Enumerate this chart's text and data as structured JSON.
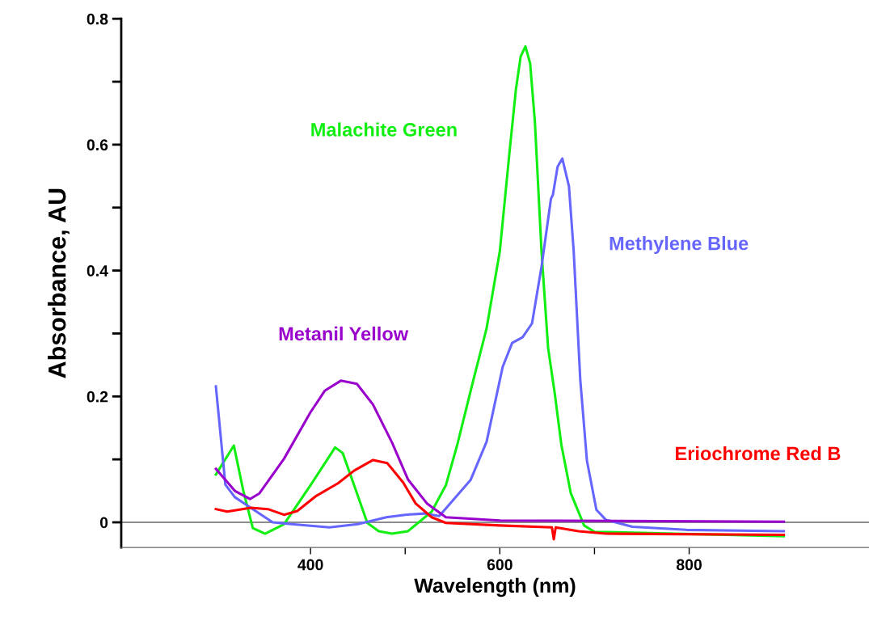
{
  "chart_data": {
    "type": "line",
    "xlabel": "Wavelength (nm)",
    "ylabel": "Absorbance, AU",
    "xlim": [
      200,
      990
    ],
    "ylim": [
      -0.04,
      0.8
    ],
    "xticks": [
      400,
      {
        "value": 500,
        "label": null
      },
      600,
      {
        "value": 700,
        "label": null
      },
      800
    ],
    "yticks": [
      0,
      {
        "value": 0.1,
        "label": null
      },
      0.2,
      {
        "value": 0.3,
        "label": null
      },
      0.4,
      {
        "value": 0.5,
        "label": null
      },
      0.6,
      {
        "value": 0.7,
        "label": null
      },
      0.8
    ],
    "ref_lines": [
      {
        "axis": "y",
        "value": 0,
        "color": "#666666"
      }
    ],
    "grid": false,
    "legend": false,
    "marker": "none",
    "line_style": "solid",
    "series": [
      {
        "name": "Malachite Green",
        "color": "#11ee11",
        "x": [
          300,
          319,
          329,
          339,
          352,
          372,
          400,
          426,
          434,
          446,
          460,
          472,
          486,
          503,
          528,
          543,
          555,
          572,
          586,
          600,
          610,
          617,
          622,
          627,
          632,
          637,
          644,
          651,
          658,
          665,
          675,
          689,
          700,
          900
        ],
        "values": [
          0.076,
          0.122,
          0.05,
          -0.009,
          -0.018,
          -0.003,
          0.059,
          0.119,
          0.11,
          0.059,
          -0.001,
          -0.014,
          -0.018,
          -0.014,
          0.017,
          0.059,
          0.123,
          0.226,
          0.308,
          0.431,
          0.585,
          0.688,
          0.74,
          0.756,
          0.729,
          0.637,
          0.431,
          0.277,
          0.205,
          0.123,
          0.046,
          -0.005,
          -0.015,
          -0.022
        ]
      },
      {
        "name": "Methylene Blue",
        "color": "#6666ff",
        "x": [
          300,
          310,
          320,
          340,
          360,
          380,
          420,
          450,
          480,
          500,
          520,
          536,
          569,
          586,
          603,
          613,
          624,
          634,
          644,
          654,
          656,
          661,
          666,
          673,
          678,
          685,
          692,
          702,
          712,
          740,
          797,
          900
        ],
        "values": [
          0.216,
          0.06,
          0.04,
          0.02,
          0.0,
          -0.003,
          -0.008,
          -0.003,
          0.008,
          0.012,
          0.014,
          0.01,
          0.067,
          0.128,
          0.247,
          0.285,
          0.294,
          0.316,
          0.406,
          0.514,
          0.52,
          0.565,
          0.578,
          0.534,
          0.431,
          0.226,
          0.098,
          0.02,
          0.004,
          -0.007,
          -0.012,
          -0.014
        ]
      },
      {
        "name": "Metanil Yellow",
        "color": "#9900cc",
        "x": [
          300,
          320,
          336,
          346,
          372,
          400,
          415,
          432,
          449,
          466,
          486,
          503,
          523,
          543,
          600,
          900
        ],
        "values": [
          0.085,
          0.05,
          0.037,
          0.046,
          0.101,
          0.175,
          0.209,
          0.225,
          0.22,
          0.187,
          0.127,
          0.068,
          0.03,
          0.008,
          0.003,
          0.001
        ]
      },
      {
        "name": "Eriochrome Red B",
        "color": "#ff0000",
        "x": [
          300,
          312,
          337,
          355,
          372,
          386,
          406,
          429,
          446,
          466,
          481,
          486,
          498,
          511,
          528,
          543,
          600,
          655,
          657,
          659,
          683,
          712,
          900
        ],
        "values": [
          0.021,
          0.017,
          0.023,
          0.021,
          0.012,
          0.018,
          0.042,
          0.062,
          0.082,
          0.099,
          0.094,
          0.085,
          0.063,
          0.03,
          0.008,
          -0.001,
          -0.005,
          -0.008,
          -0.027,
          -0.008,
          -0.014,
          -0.018,
          -0.02
        ]
      }
    ]
  }
}
